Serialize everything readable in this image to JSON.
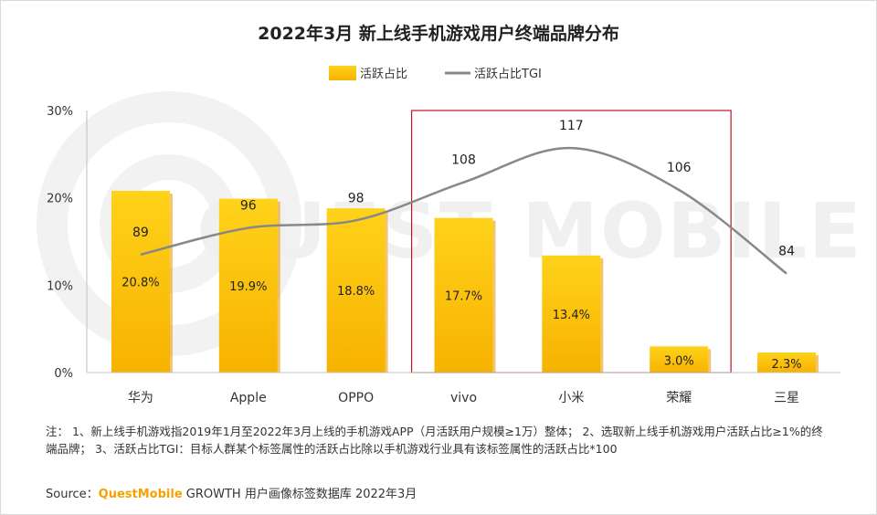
{
  "chart_data": {
    "type": "bar",
    "title": "2022年3月 新上线手机游戏用户终端品牌分布",
    "categories": [
      "华为",
      "Apple",
      "OPPO",
      "vivo",
      "小米",
      "荣耀",
      "三星"
    ],
    "series": [
      {
        "name": "活跃占比",
        "type": "bar",
        "values": [
          20.8,
          19.9,
          18.8,
          17.7,
          13.4,
          3.0,
          2.3
        ],
        "labels": [
          "20.8%",
          "19.9%",
          "18.8%",
          "17.7%",
          "13.4%",
          "3.0%",
          "2.3%"
        ]
      },
      {
        "name": "活跃占比TGI",
        "type": "line",
        "values": [
          89,
          96,
          98,
          108,
          117,
          106,
          84
        ]
      }
    ],
    "ylim": [
      0,
      30
    ],
    "yticks": [
      "0%",
      "10%",
      "20%",
      "30%"
    ],
    "highlight_categories": [
      "vivo",
      "小米",
      "荣耀"
    ],
    "legend_position": "top-center",
    "colors": {
      "bar": "#fbbf0b",
      "bar_shadow": "#e69500",
      "line": "#888888",
      "highlight": "#c0161b"
    },
    "watermark": "QUEST MOBILE"
  },
  "note": "注： 1、新上线手机游戏指2019年1月至2022年3月上线的手机游戏APP（月活跃用户规模≥1万）整体； 2、选取新上线手机游戏用户活跃占比≥1%的终端品牌； 3、活跃占比TGI：目标人群某个标签属性的活跃占比除以手机游戏行业具有该标签属性的活跃占比*100",
  "source": {
    "prefix": "Source：",
    "brand": "QuestMobile",
    "suffix": " GROWTH 用户画像标签数据库 2022年3月"
  }
}
